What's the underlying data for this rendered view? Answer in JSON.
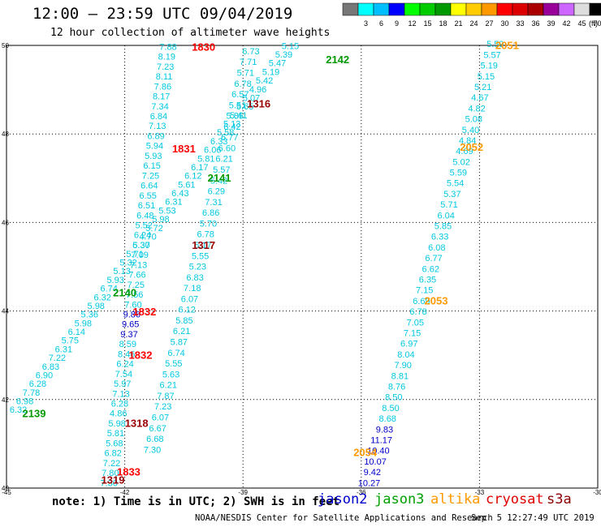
{
  "header": {
    "title": "12:00 — 23:59 UTC 09/04/2019",
    "subtitle": "12 hour collection of altimeter wave heights"
  },
  "legend": {
    "unit": "(ft)",
    "bins": [
      {
        "label": "",
        "color": "#777777"
      },
      {
        "label": "3",
        "color": "#00ffff"
      },
      {
        "label": "6",
        "color": "#00bfff"
      },
      {
        "label": "9",
        "color": "#0000ff"
      },
      {
        "label": "12",
        "color": "#00ff00"
      },
      {
        "label": "15",
        "color": "#00cc00"
      },
      {
        "label": "18",
        "color": "#009900"
      },
      {
        "label": "21",
        "color": "#ffff00"
      },
      {
        "label": "24",
        "color": "#ffcc00"
      },
      {
        "label": "27",
        "color": "#ff9900"
      },
      {
        "label": "30",
        "color": "#ff0000"
      },
      {
        "label": "33",
        "color": "#dd0000"
      },
      {
        "label": "36",
        "color": "#aa0000"
      },
      {
        "label": "39",
        "color": "#990099"
      },
      {
        "label": "42",
        "color": "#cc66ff"
      },
      {
        "label": "45",
        "color": "#dddddd"
      },
      {
        "label": "70",
        "color": "#000000"
      }
    ]
  },
  "footer": {
    "note": "note: 1) Time is in UTC; 2) SWH is in feet",
    "satellites": {
      "jason2": "jason2",
      "jason3": "jason3",
      "altika": "altika",
      "cryosat": "cryosat",
      "s3a": "s3a"
    },
    "credit": "NOAA/NESDIS Center for Satellite Applications and Research",
    "timestamp": "Sep  5 12:27:49 UTC 2019"
  },
  "chart_data": {
    "type": "scatter",
    "title": "12:00 — 23:59 UTC 09/04/2019",
    "subtitle": "12 hour collection of altimeter wave heights",
    "xlabel": "",
    "ylabel": "",
    "xlim": [
      -45,
      -30
    ],
    "ylim": [
      40,
      50
    ],
    "x_ticks": [
      -45,
      -42,
      -39,
      -36,
      -33,
      -30
    ],
    "y_ticks": [
      40,
      42,
      44,
      46,
      48,
      50
    ],
    "grid": true,
    "units": "ft",
    "tracks": [
      {
        "id": "altika-2051-2054",
        "color": "#00c8e0",
        "start": [
          -32.6,
          49.96
        ],
        "end": [
          -35.8,
          40.05
        ],
        "values": [
          "5.59",
          "5.57",
          "5.19",
          "5.15",
          "5.21",
          "4.67",
          "4.82",
          "5.08",
          "5.40",
          "4.84",
          "4.69",
          "5.02",
          "5.59",
          "5.54",
          "5.37",
          "5.71",
          "6.04",
          "5.85",
          "6.33",
          "6.08",
          "6.77",
          "6.62",
          "6.35",
          "7.15",
          "6.69",
          "6.78",
          "7.05",
          "7.15",
          "6.97",
          "8.04",
          "7.90",
          "8.81",
          "8.76",
          "8.50",
          "8.50",
          "8.68",
          "9.83",
          "11.17",
          "10.40",
          "10.07",
          "9.42",
          "10.27"
        ],
        "value_colors": {
          "9.83": "#0000cc",
          "11.17": "#0000cc",
          "10.40": "#0000cc",
          "10.07": "#0000cc",
          "9.42": "#0000cc",
          "10.27": "#0000cc"
        }
      },
      {
        "id": "s3a-1830-1833",
        "color": "#00c8e0",
        "start": [
          -40.9,
          49.9
        ],
        "end": [
          -42.4,
          40.05
        ],
        "values": [
          "7.88",
          "8.19",
          "7.23",
          "8.11",
          "7.86",
          "8.17",
          "7.34",
          "6.84",
          "7.13",
          "6.89",
          "5.94",
          "5.93",
          "6.15",
          "7.25",
          "6.64",
          "6.55",
          "6.51",
          "6.48",
          "5.52",
          "6.24",
          "6.30",
          "7.09",
          "7.13",
          "7.66",
          "7.25",
          "7.56",
          "7.60",
          "9.86",
          "9.65",
          "9.37",
          "8.59",
          "8.46",
          "6.24",
          "7.54",
          "5.97",
          "7.13",
          "6.28",
          "4.86",
          "5.98",
          "5.81",
          "5.68",
          "6.82",
          "7.22",
          "7.80",
          "7.30"
        ],
        "value_colors": {
          "9.86": "#0000cc",
          "9.65": "#0000cc",
          "9.37": "#0000cc"
        }
      },
      {
        "id": "jason3-2139-2142",
        "color": "#00c8e0",
        "start": [
          -37.8,
          49.92
        ],
        "end": [
          -44.7,
          41.7
        ],
        "values": [
          "5.15",
          "5.39",
          "5.47",
          "5.19",
          "5.42",
          "4.96",
          "5.07",
          "5.65",
          "5.41",
          "5.13",
          "5.58",
          "6.33",
          "6.06",
          "5.81",
          "6.17",
          "6.12",
          "5.61",
          "6.43",
          "6.31",
          "5.53",
          "5.98",
          "5.72",
          "4.70",
          "5.37",
          "5.71",
          "5.32",
          "5.13",
          "5.93",
          "6.74",
          "6.32",
          "5.98",
          "5.36",
          "5.98",
          "6.14",
          "5.75",
          "6.31",
          "7.22",
          "6.83",
          "6.90",
          "6.28",
          "7.78",
          "6.98",
          "6.32"
        ]
      },
      {
        "id": "jason3-1316-1319",
        "color": "#00c8e0",
        "start": [
          -38.8,
          49.8
        ],
        "end": [
          -41.3,
          40.8
        ],
        "values": [
          "6.73",
          "7.71",
          "5.71",
          "6.78",
          "6.57",
          "5.51",
          "5.85",
          "6.42",
          "6.77",
          "6.60",
          "6.21",
          "5.57",
          "5.42",
          "6.29",
          "7.31",
          "6.86",
          "5.70",
          "6.78",
          "5.17",
          "5.55",
          "5.23",
          "6.83",
          "7.18",
          "6.07",
          "6.12",
          "5.85",
          "6.21",
          "5.87",
          "6.74",
          "5.55",
          "5.63",
          "6.21",
          "7.87",
          "7.23",
          "6.07",
          "6.67",
          "6.68",
          "7.30"
        ]
      }
    ],
    "labels": [
      {
        "text": "2051",
        "color": "#ff9900",
        "x": -32.3,
        "y": 49.92
      },
      {
        "text": "2052",
        "color": "#ff9900",
        "x": -33.2,
        "y": 47.62
      },
      {
        "text": "2053",
        "color": "#ff9900",
        "x": -34.1,
        "y": 44.15
      },
      {
        "text": "2054",
        "color": "#ff9900",
        "x": -35.9,
        "y": 40.72
      },
      {
        "text": "2142",
        "color": "#009900",
        "x": -36.6,
        "y": 49.6
      },
      {
        "text": "2141",
        "color": "#009900",
        "x": -39.6,
        "y": 46.92
      },
      {
        "text": "2140",
        "color": "#009900",
        "x": -42.0,
        "y": 44.33
      },
      {
        "text": "2139",
        "color": "#009900",
        "x": -44.3,
        "y": 41.6
      },
      {
        "text": "1830",
        "color": "#ff0000",
        "x": -40.0,
        "y": 49.88
      },
      {
        "text": "1831",
        "color": "#ff0000",
        "x": -40.5,
        "y": 47.58
      },
      {
        "text": "1832",
        "color": "#ff0000",
        "x": -41.5,
        "y": 43.9
      },
      {
        "text": "1832",
        "color": "#ff0000",
        "x": -41.6,
        "y": 42.92
      },
      {
        "text": "1833",
        "color": "#ff0000",
        "x": -41.9,
        "y": 40.28
      },
      {
        "text": "1316",
        "color": "#990000",
        "x": -38.6,
        "y": 48.6
      },
      {
        "text": "1317",
        "color": "#990000",
        "x": -40.0,
        "y": 45.4
      },
      {
        "text": "1318",
        "color": "#990000",
        "x": -41.7,
        "y": 41.38
      },
      {
        "text": "1319",
        "color": "#990000",
        "x": -42.3,
        "y": 40.1
      }
    ]
  }
}
